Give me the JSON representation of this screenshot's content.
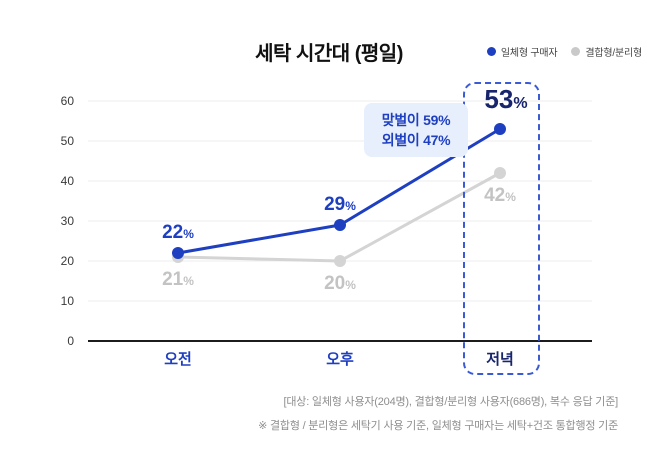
{
  "colors": {
    "blue": "#1e3fc0",
    "navy": "#18246b",
    "gray_line": "#d4d4d4",
    "gray_label": "#c3c3c3",
    "annotation_bg": "#e8effc",
    "grid": "#ececec",
    "axis": "#1c1c1c"
  },
  "legend": {
    "items": [
      {
        "label": "일체형 구매자",
        "color": "#1e3fc0"
      },
      {
        "label": "결합형/분리형",
        "color": "#c9c9c9"
      }
    ]
  },
  "chart_data": {
    "type": "line",
    "title": "세탁 시간대 (평일)",
    "categories": [
      "오전",
      "오후",
      "저녁"
    ],
    "series": [
      {
        "name": "일체형 구매자",
        "color": "#1e3fc0",
        "values": [
          22,
          29,
          53
        ]
      },
      {
        "name": "결합형/분리형",
        "color": "#d4d4d4",
        "values": [
          21,
          20,
          42
        ]
      }
    ],
    "unit": "%",
    "ylim": [
      0,
      60
    ],
    "yticks": [
      0,
      10,
      20,
      30,
      40,
      50,
      60
    ],
    "grid": true,
    "legend_position": "top-right",
    "annotation": {
      "lines": [
        "맞벌이 59%",
        "외벌이 47%"
      ],
      "attached_to": "저녁"
    },
    "highlight_category": "저녁"
  },
  "footnotes": [
    "[대상: 일체형 사용자(204명), 결합형/분리형 사용자(686명), 복수 응답 기준]",
    "※ 결합형 / 분리형은 세탁기 사용 기준, 일체형 구매자는 세탁+건조 통합행정 기준"
  ]
}
